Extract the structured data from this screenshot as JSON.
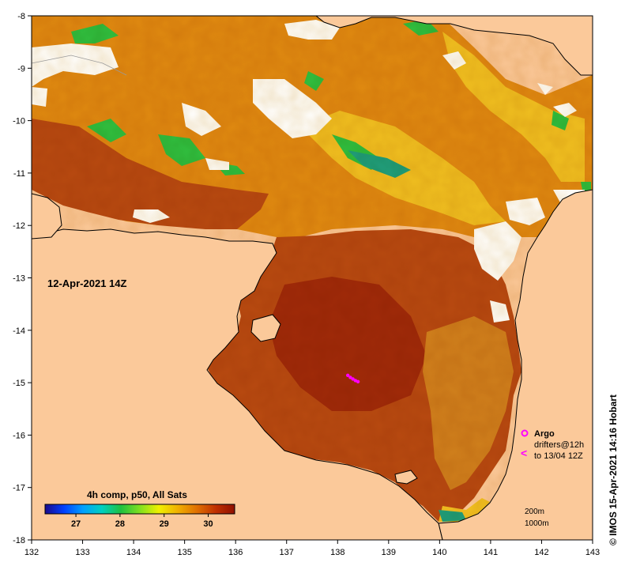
{
  "map": {
    "x_ticks": [
      "132",
      "133",
      "134",
      "135",
      "136",
      "137",
      "138",
      "139",
      "140",
      "141",
      "142",
      "143"
    ],
    "y_ticks": [
      "-8",
      "-9",
      "-10",
      "-11",
      "-12",
      "-13",
      "-14",
      "-15",
      "-16",
      "-17",
      "-18"
    ],
    "x_range": [
      132,
      143
    ],
    "y_range": [
      -8,
      -18
    ],
    "date_label": "12-Apr-2021 14Z",
    "credit": "© IMOS 15-Apr-2021 14:16 Hobart",
    "colorbar": {
      "title": "4h comp, p50, All Sats",
      "ticks": [
        "27",
        "28",
        "29",
        "30"
      ],
      "tick_values": [
        27,
        28,
        29,
        30
      ],
      "range": [
        26.3,
        30.6
      ],
      "colors": [
        "#1a0a8c",
        "#0040ff",
        "#00a0ff",
        "#00d0c0",
        "#20c040",
        "#80e020",
        "#f0f000",
        "#f0b000",
        "#e07000",
        "#c03000",
        "#901000"
      ]
    },
    "legend": {
      "argo_label": "Argo",
      "drifters_label": "drifters@12h",
      "drifters_to": "to 13/04 12Z",
      "contour_200": "200m",
      "contour_1000": "1000m"
    },
    "colors": {
      "land": "#fbc99a",
      "cloud": "#ffffff",
      "sst_warm": "#b84a10",
      "sst_hot": "#a02a08",
      "sst_mid": "#e08a10",
      "sst_cool": "#f0c020",
      "argo": "#ff00ff"
    },
    "argo_track": [
      [
        138.2,
        -14.86
      ],
      [
        138.25,
        -14.9
      ],
      [
        138.3,
        -14.93
      ],
      [
        138.35,
        -14.96
      ],
      [
        138.4,
        -14.98
      ]
    ]
  }
}
